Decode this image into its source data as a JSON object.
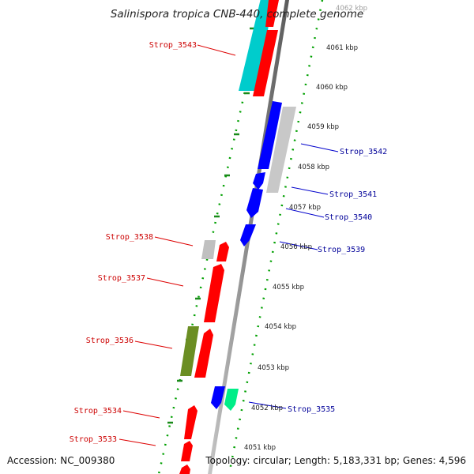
{
  "title": "Salinispora tropica CNB-440, complete genome",
  "footer": {
    "accession": "Accession: NC_009380",
    "topology": "Topology: circular; Length: 5,183,331 bp; Genes: 4,596"
  },
  "kbp_labels": [
    "4062 kbp",
    "4061 kbp",
    "4060 kbp",
    "4059 kbp",
    "4058 kbp",
    "4057 kbp",
    "4056 kbp",
    "4055 kbp",
    "4054 kbp",
    "4053 kbp",
    "4052 kbp",
    "4051 kbp"
  ],
  "gene_labels": {
    "left": [
      "Strop_3543",
      "Strop_3538",
      "Strop_3537",
      "Strop_3536",
      "Strop_3534",
      "Strop_3533"
    ],
    "right": [
      "Strop_3542",
      "Strop_3541",
      "Strop_3540",
      "Strop_3539",
      "Strop_3535"
    ]
  },
  "colors": {
    "forward_label": "#cc0000",
    "reverse_label": "#000099",
    "red": "#ff0000",
    "blue": "#0000ff",
    "cyan": "#00cccc",
    "olive": "#6b8e23",
    "gray": "#bdbdbd",
    "mint": "#00ee88",
    "track_dots": "#00a000"
  }
}
